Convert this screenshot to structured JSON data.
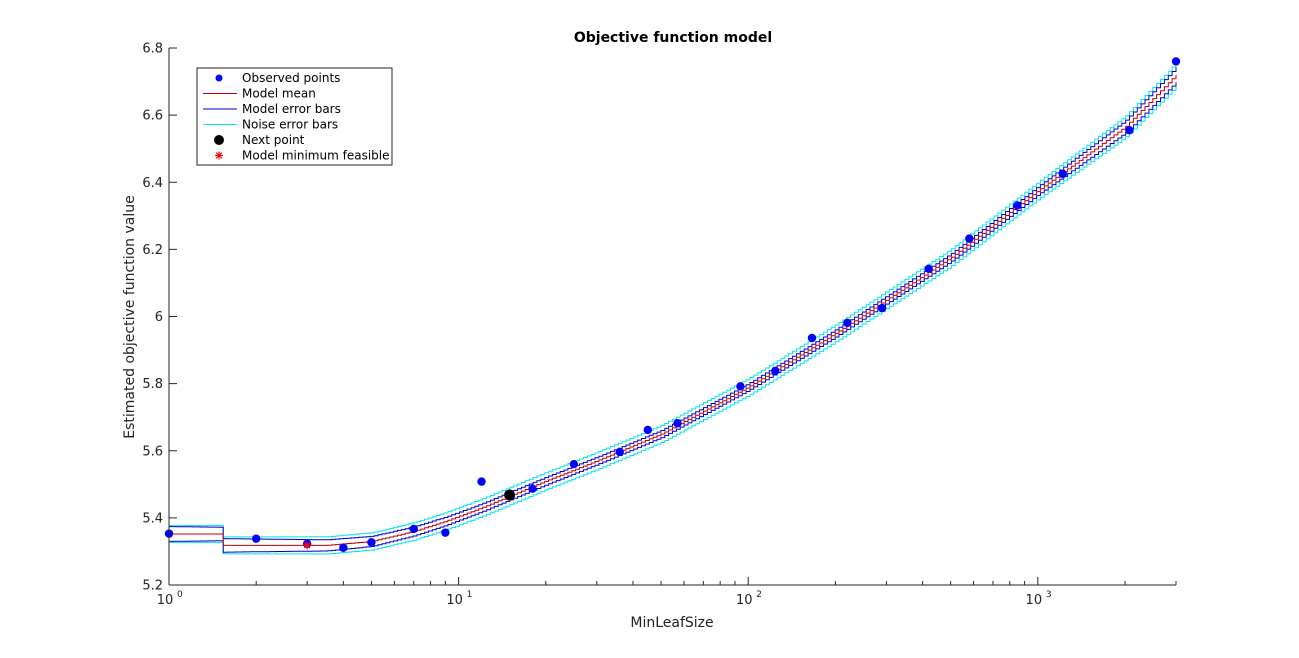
{
  "chart_data": {
    "type": "line",
    "title": "Objective function model",
    "xlabel": "MinLeafSize",
    "ylabel": "Estimated objective function value",
    "xscale": "log",
    "xlim": [
      1,
      3000
    ],
    "ylim": [
      5.2,
      6.8
    ],
    "x_ticks": [
      1,
      10,
      100,
      1000
    ],
    "x_tick_labels": [
      {
        "base": "10",
        "exp": "0"
      },
      {
        "base": "10",
        "exp": "1"
      },
      {
        "base": "10",
        "exp": "2"
      },
      {
        "base": "10",
        "exp": "3"
      }
    ],
    "y_ticks": [
      "5.2",
      "5.4",
      "5.6",
      "5.8",
      "6",
      "6.2",
      "6.4",
      "6.6",
      "6.8"
    ],
    "grid": false,
    "legend_position": "top-left",
    "legend": [
      {
        "label": "Observed points",
        "kind": "dot",
        "color": "#0000ff"
      },
      {
        "label": "Model mean",
        "kind": "line",
        "color": "#c00000"
      },
      {
        "label": "Model error bars",
        "kind": "line",
        "color": "#0000cc"
      },
      {
        "label": "Noise error bars",
        "kind": "line",
        "color": "#00e5ee"
      },
      {
        "label": "Next point",
        "kind": "bigdot",
        "color": "#000000"
      },
      {
        "label": "Model minimum feasible",
        "kind": "star",
        "color": "#ff0000"
      }
    ],
    "observed_points": [
      {
        "x": 1,
        "y": 5.353
      },
      {
        "x": 2,
        "y": 5.338
      },
      {
        "x": 3,
        "y": 5.323
      },
      {
        "x": 4,
        "y": 5.311
      },
      {
        "x": 5,
        "y": 5.327
      },
      {
        "x": 7,
        "y": 5.367
      },
      {
        "x": 9,
        "y": 5.356
      },
      {
        "x": 12,
        "y": 5.508
      },
      {
        "x": 18,
        "y": 5.487
      },
      {
        "x": 25,
        "y": 5.56
      },
      {
        "x": 36,
        "y": 5.596
      },
      {
        "x": 45,
        "y": 5.662
      },
      {
        "x": 57,
        "y": 5.682
      },
      {
        "x": 94,
        "y": 5.792
      },
      {
        "x": 124,
        "y": 5.838
      },
      {
        "x": 166,
        "y": 5.936
      },
      {
        "x": 220,
        "y": 5.981
      },
      {
        "x": 290,
        "y": 6.025
      },
      {
        "x": 420,
        "y": 6.142
      },
      {
        "x": 580,
        "y": 6.232
      },
      {
        "x": 850,
        "y": 6.331
      },
      {
        "x": 1220,
        "y": 6.425
      },
      {
        "x": 2070,
        "y": 6.555
      },
      {
        "x": 3000,
        "y": 6.76
      }
    ],
    "next_point": {
      "x": 15,
      "y": 5.468
    },
    "model_minimum_feasible": {
      "x": 3,
      "y": 5.318
    },
    "model_mean": [
      {
        "x": 1,
        "y": 5.352
      },
      {
        "x": 1.5,
        "y": 5.352
      },
      {
        "x": 1.5,
        "y": 5.318
      },
      {
        "x": 3.5,
        "y": 5.318
      },
      {
        "x": 5,
        "y": 5.33
      },
      {
        "x": 7,
        "y": 5.36
      },
      {
        "x": 9,
        "y": 5.39
      },
      {
        "x": 12,
        "y": 5.43
      },
      {
        "x": 15,
        "y": 5.465
      },
      {
        "x": 20,
        "y": 5.51
      },
      {
        "x": 30,
        "y": 5.57
      },
      {
        "x": 50,
        "y": 5.65
      },
      {
        "x": 100,
        "y": 5.79
      },
      {
        "x": 200,
        "y": 5.95
      },
      {
        "x": 500,
        "y": 6.175
      },
      {
        "x": 1000,
        "y": 6.375
      },
      {
        "x": 2000,
        "y": 6.565
      },
      {
        "x": 3000,
        "y": 6.72
      }
    ],
    "model_error_halfwidth": [
      {
        "x": 1,
        "y": 0.022
      },
      {
        "x": 10,
        "y": 0.012
      },
      {
        "x": 100,
        "y": 0.01
      },
      {
        "x": 1000,
        "y": 0.012
      },
      {
        "x": 3000,
        "y": 0.022
      }
    ],
    "noise_error_halfwidth": [
      {
        "x": 1,
        "y": 0.025
      },
      {
        "x": 10,
        "y": 0.026
      },
      {
        "x": 100,
        "y": 0.025
      },
      {
        "x": 1000,
        "y": 0.025
      },
      {
        "x": 3000,
        "y": 0.035
      }
    ]
  }
}
